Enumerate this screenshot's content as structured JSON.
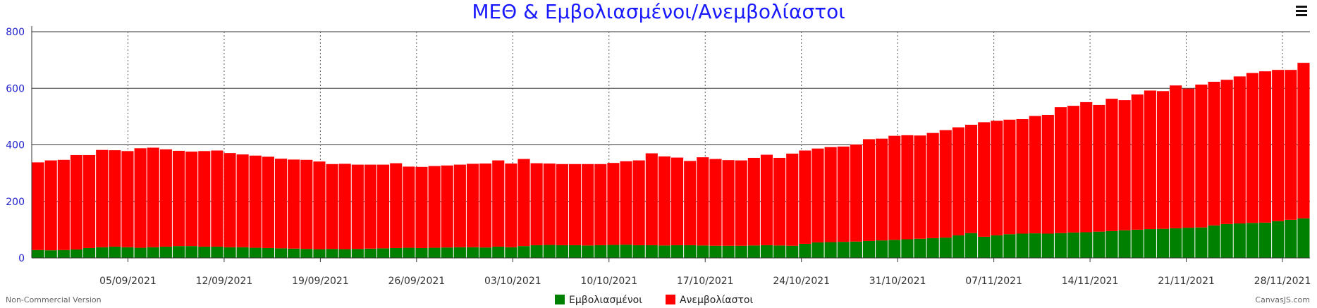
{
  "title": "ΜΕΘ & Εμβολιασμένοι/Ανεμβολίαστοι",
  "footer_left": "Non-Commercial Version",
  "footer_right": "CanvasJS.com",
  "menu_icon": "hamburger-menu-icon",
  "chart_data": {
    "type": "bar",
    "stacked": true,
    "title": "ΜΕΘ & Εμβολιασμένοι/Ανεμβολίαστοι",
    "xlabel": "",
    "ylabel": "",
    "ylim": [
      0,
      800
    ],
    "yticks": [
      0,
      200,
      400,
      600,
      800
    ],
    "grid": true,
    "legend_position": "bottom-center",
    "x_start": "29/08/2021",
    "x_end": "30/11/2021",
    "x_tick_labels": [
      "05/09/2021",
      "12/09/2021",
      "19/09/2021",
      "26/09/2021",
      "03/10/2021",
      "10/10/2021",
      "17/10/2021",
      "24/10/2021",
      "31/10/2021",
      "07/11/2021",
      "14/11/2021",
      "21/11/2021",
      "28/11/2021"
    ],
    "series": [
      {
        "name": "Εμβολιασμένοι",
        "color": "#008000",
        "values": [
          28,
          27,
          28,
          30,
          35,
          38,
          40,
          38,
          36,
          38,
          40,
          42,
          42,
          40,
          40,
          38,
          38,
          36,
          35,
          34,
          33,
          32,
          31,
          32,
          31,
          32,
          33,
          34,
          35,
          36,
          35,
          36,
          37,
          38,
          38,
          37,
          40,
          38,
          42,
          45,
          46,
          45,
          45,
          44,
          45,
          46,
          47,
          45,
          45,
          44,
          45,
          45,
          44,
          43,
          43,
          43,
          44,
          45,
          44,
          43,
          50,
          55,
          56,
          57,
          58,
          60,
          62,
          64,
          66,
          68,
          70,
          72,
          80,
          88,
          75,
          80,
          84,
          86,
          87,
          86,
          88,
          90,
          91,
          93,
          95,
          98,
          100,
          102,
          103,
          105,
          107,
          108,
          115,
          120,
          122,
          124,
          125,
          130,
          135,
          140
        ]
      },
      {
        "name": "Ανεμβολίαστοι",
        "color": "#ff0000",
        "values": [
          310,
          318,
          319,
          334,
          329,
          344,
          341,
          340,
          352,
          352,
          344,
          337,
          334,
          338,
          340,
          333,
          328,
          326,
          323,
          317,
          315,
          315,
          310,
          300,
          302,
          298,
          297,
          296,
          300,
          287,
          287,
          289,
          290,
          292,
          295,
          297,
          305,
          296,
          308,
          290,
          288,
          287,
          287,
          288,
          287,
          290,
          295,
          300,
          325,
          315,
          310,
          298,
          312,
          307,
          303,
          302,
          310,
          320,
          310,
          326,
          330,
          332,
          336,
          337,
          343,
          360,
          360,
          368,
          368,
          365,
          372,
          380,
          382,
          383,
          405,
          405,
          405,
          405,
          415,
          420,
          445,
          448,
          460,
          448,
          468,
          460,
          478,
          490,
          487,
          505,
          492,
          505,
          508,
          510,
          520,
          530,
          535,
          535,
          530,
          550
        ]
      }
    ]
  }
}
